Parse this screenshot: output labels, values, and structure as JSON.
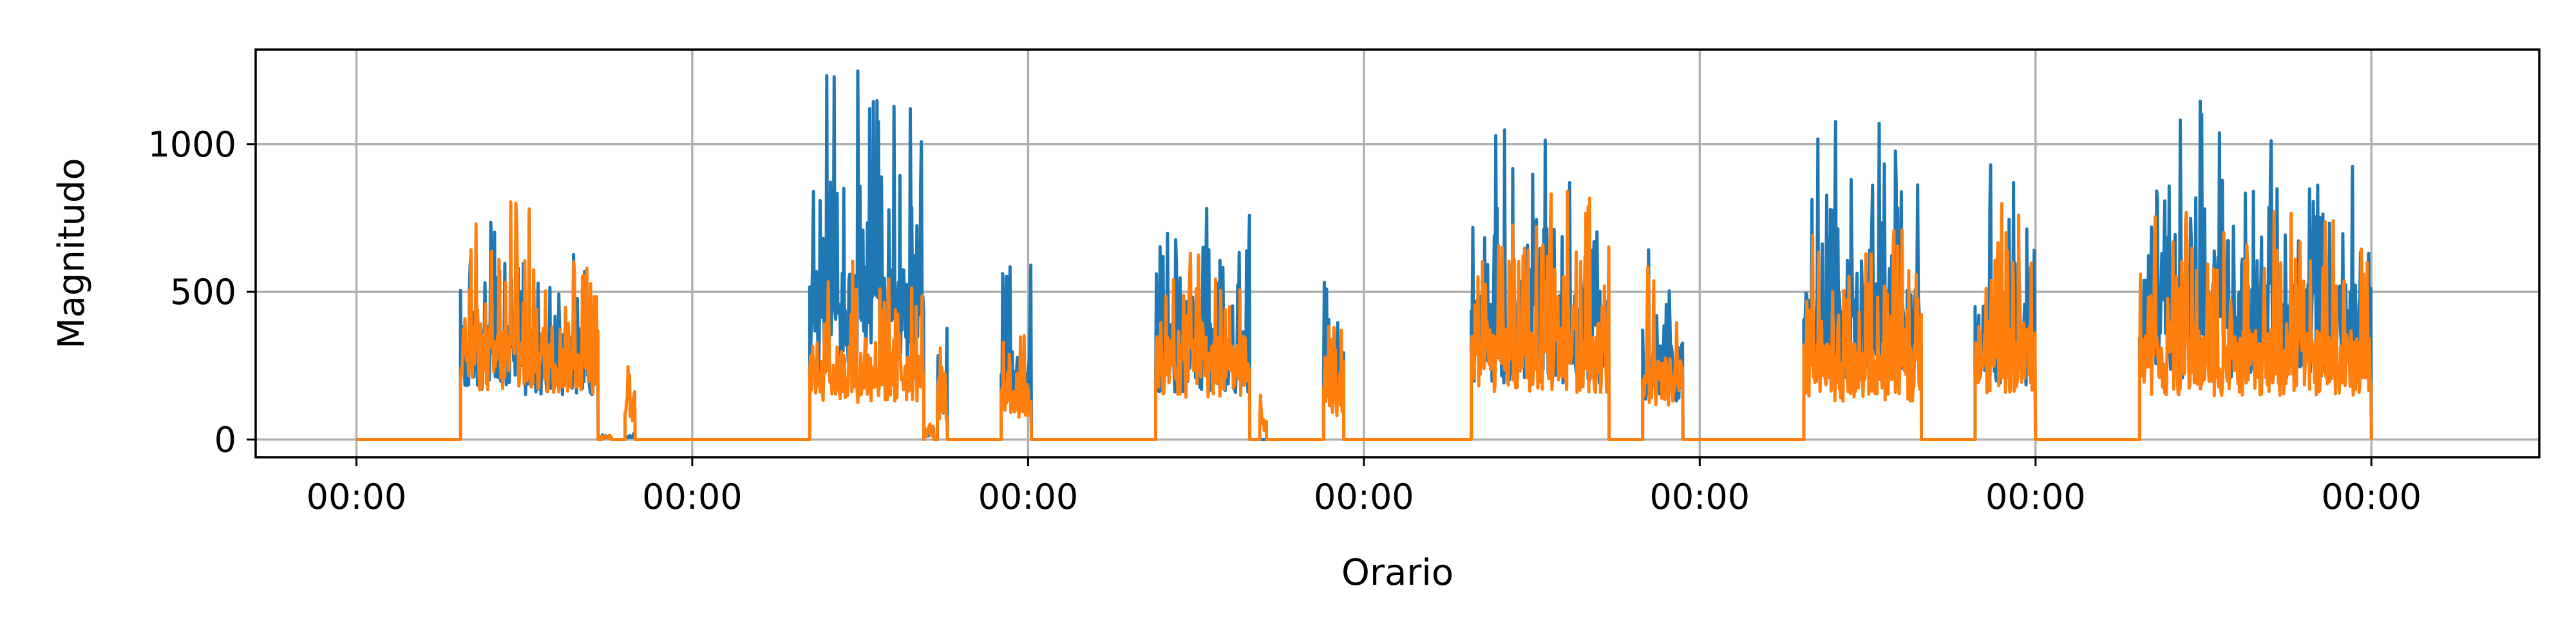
{
  "chart_data": {
    "type": "line",
    "title": "",
    "xlabel": "Orario",
    "ylabel": "Magnitudo",
    "xtick_labels": [
      "00:00",
      "00:00",
      "00:00",
      "00:00",
      "00:00",
      "00:00",
      "00:00"
    ],
    "x_unit": "days",
    "xlim": [
      -0.3,
      6.5
    ],
    "yticks": [
      0,
      500,
      1000
    ],
    "ylim": [
      -60,
      1320
    ],
    "grid": true,
    "colors": [
      "#1f77b4",
      "#ff7f0e"
    ],
    "bursts": [
      {
        "start": 0.31,
        "end": 0.72,
        "blue_max": 840,
        "orange_max": 860
      },
      {
        "start": 0.8,
        "end": 0.83,
        "blue_max": 30,
        "orange_max": 340
      },
      {
        "start": 0.73,
        "end": 0.76,
        "blue_max": 20,
        "orange_max": 20
      },
      {
        "start": 1.35,
        "end": 1.69,
        "blue_max": 1260,
        "orange_max": 690
      },
      {
        "start": 1.69,
        "end": 1.72,
        "blue_max": 60,
        "orange_max": 60
      },
      {
        "start": 1.73,
        "end": 1.76,
        "blue_max": 390,
        "orange_max": 360
      },
      {
        "start": 1.92,
        "end": 2.01,
        "blue_max": 610,
        "orange_max": 410
      },
      {
        "start": 2.38,
        "end": 2.66,
        "blue_max": 870,
        "orange_max": 780
      },
      {
        "start": 2.69,
        "end": 2.71,
        "blue_max": 0,
        "orange_max": 150
      },
      {
        "start": 2.88,
        "end": 2.94,
        "blue_max": 710,
        "orange_max": 430
      },
      {
        "start": 3.32,
        "end": 3.73,
        "blue_max": 1060,
        "orange_max": 880
      },
      {
        "start": 3.83,
        "end": 3.95,
        "blue_max": 700,
        "orange_max": 600
      },
      {
        "start": 4.31,
        "end": 4.66,
        "blue_max": 1130,
        "orange_max": 710
      },
      {
        "start": 4.82,
        "end": 5.0,
        "blue_max": 1000,
        "orange_max": 870
      },
      {
        "start": 5.31,
        "end": 6.0,
        "blue_max": 1150,
        "orange_max": 810
      }
    ]
  }
}
